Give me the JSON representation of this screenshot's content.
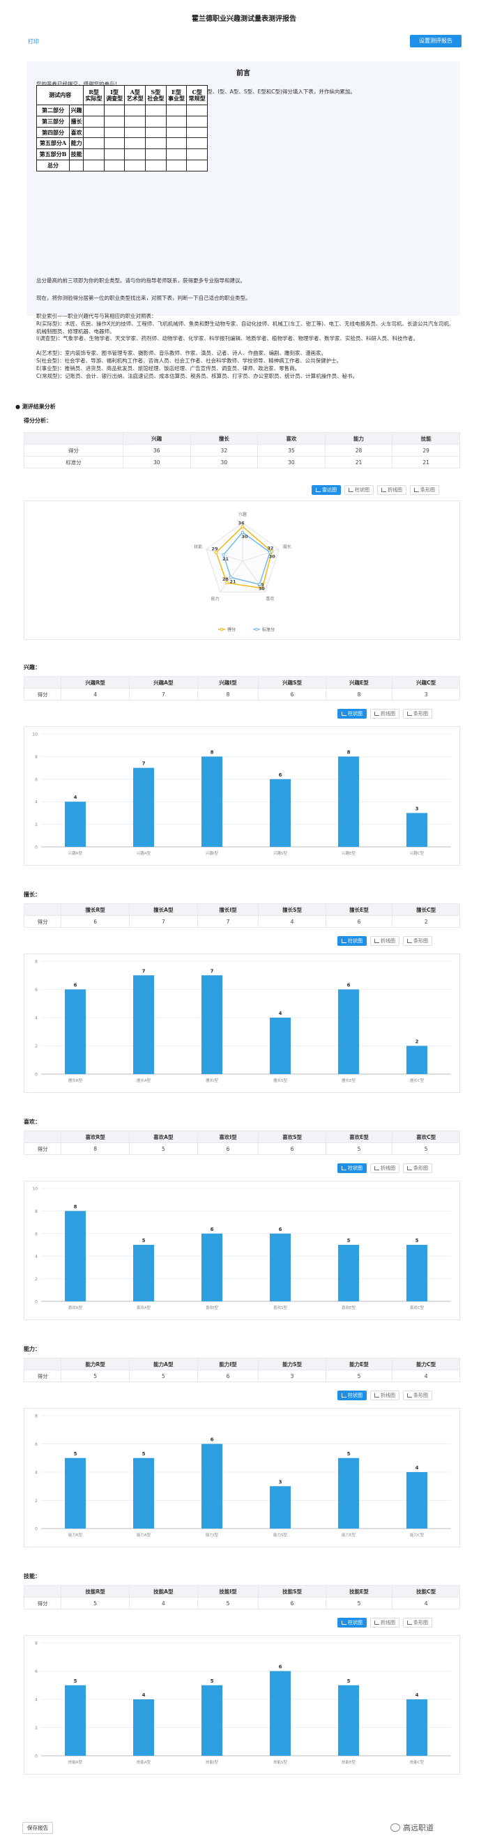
{
  "page": {
    "title": "霍兰德职业兴趣测试量表测评报告",
    "print_label": "打印",
    "setup_button": "设置测评报告",
    "save_button": "保存报告",
    "watermark": "高远职道"
  },
  "preface": {
    "title": "前言",
    "line1": "您的答卷已经提交，感谢您的参与！",
    "line2": "请将第二部分至第五部分的全部测验分数按前面已统计好的6种职业倾向(R型、I型、A型、S型、E型和C型)得分填入下表，并作纵向累加。",
    "table": {
      "headers": [
        "测试内容",
        "",
        "R型\n实际型",
        "I型\n调查型",
        "A型\n艺术型",
        "S型\n社会型",
        "E型\n事业型",
        "C型\n常规型"
      ],
      "rows": [
        [
          "第二部分",
          "兴趣"
        ],
        [
          "第三部分",
          "擅长"
        ],
        [
          "第四部分",
          "喜欢"
        ],
        [
          "第五部分A",
          "能力"
        ],
        [
          "第五部分B",
          "技能"
        ],
        [
          "总分",
          ""
        ]
      ]
    },
    "line3": "总分最高的前三项即为你的职业类型。请与你的指导老师联系，获得更多专业指导和建议。",
    "line4": "现在，将你测验得分居第一位的职业类型找出来，对照下表，判断一下自己适合的职业类型。",
    "line5": "职业索引——职业兴趣代号与其相应的职业对照表：",
    "line6": "R(实际型)：木匠、农民、操作X光的技师、工程师、飞机机械师、鱼类和野生动物专家、自动化技师、机械工(车工、钳工等)、电工、无线电报务员、火车司机、长途公共汽车司机、机械制图员、修理机器、电器师。",
    "line7": "I(调查型)：气象学者、生物学者、天文学家、药剂师、动物学者、化学家、科学报刊编辑、地质学者、植物学者、物理学者、数学家、实验员、科研人员、科技作者。",
    "line8": "A(艺术型)：室内装饰专家、图书管理专家、摄影师、音乐教师、作家、演员、记者、诗人、作曲家、编剧、雕刻家、漫画家。",
    "line9": "S(社会型)：社会学者、导游、福利机构工作者、咨询人员、社会工作者、社会科学教师、学校领导、精神病工作者、公共保健护士。",
    "line10": "E(事业型)：推销员、进货员、商品批发员、旅馆经理、饭店经理、广告宣传员、调查员、律师、政治家、零售商。",
    "line11": "C(常规型)：记账员、会计、银行出纳、法庭速记员、成本估算员、税务员、核算员、打字员、办公室职员、统计员、计算机操作员、秘书。"
  },
  "results": {
    "section_title": "测评结果分析",
    "score_analysis": "得分分析：",
    "summary_table": {
      "headers": [
        "",
        "兴趣",
        "擅长",
        "喜欢",
        "能力",
        "技能"
      ],
      "rows": [
        [
          "得分",
          "36",
          "32",
          "35",
          "28",
          "29"
        ],
        [
          "标准分",
          "30",
          "30",
          "30",
          "21",
          "21"
        ]
      ]
    },
    "radar_buttons": [
      "雷达图",
      "柱状图",
      "折线图",
      "条形图"
    ],
    "bar_buttons": [
      "柱状图",
      "折线图",
      "条形图"
    ],
    "cat_tables": [
      {
        "head": "兴趣：",
        "headers": [
          "",
          "兴趣R型",
          "兴趣A型",
          "兴趣I型",
          "兴趣S型",
          "兴趣E型",
          "兴趣C型"
        ],
        "row": [
          "得分",
          "4",
          "7",
          "8",
          "6",
          "8",
          "3"
        ]
      },
      {
        "head": "擅长：",
        "headers": [
          "",
          "擅长R型",
          "擅长A型",
          "擅长I型",
          "擅长S型",
          "擅长E型",
          "擅长C型"
        ],
        "row": [
          "得分",
          "6",
          "7",
          "7",
          "4",
          "6",
          "2"
        ]
      },
      {
        "head": "喜欢：",
        "headers": [
          "",
          "喜欢R型",
          "喜欢A型",
          "喜欢I型",
          "喜欢S型",
          "喜欢E型",
          "喜欢C型"
        ],
        "row": [
          "得分",
          "8",
          "5",
          "6",
          "6",
          "5",
          "5"
        ]
      },
      {
        "head": "能力：",
        "headers": [
          "",
          "能力R型",
          "能力A型",
          "能力I型",
          "能力S型",
          "能力E型",
          "能力C型"
        ],
        "row": [
          "得分",
          "5",
          "5",
          "6",
          "3",
          "5",
          "4"
        ]
      },
      {
        "head": "技能：",
        "headers": [
          "",
          "技能R型",
          "技能A型",
          "技能I型",
          "技能S型",
          "技能E型",
          "技能C型"
        ],
        "row": [
          "得分",
          "5",
          "4",
          "5",
          "6",
          "5",
          "4"
        ]
      }
    ]
  },
  "colors": {
    "accent": "#1e90e8",
    "bar": "#2e9fe0",
    "radar_score": "#f5b400",
    "radar_std": "#6fb7e8"
  },
  "chart_data": [
    {
      "type": "radar",
      "indicators": [
        "兴趣",
        "擅长",
        "喜欢",
        "能力",
        "技能"
      ],
      "max": 40,
      "series": [
        {
          "name": "得分",
          "values": [
            36,
            32,
            35,
            28,
            29
          ]
        },
        {
          "name": "标准分",
          "values": [
            30,
            30,
            30,
            21,
            21
          ]
        }
      ],
      "legend": "bottom"
    },
    {
      "type": "bar",
      "categories": [
        "兴趣R型",
        "兴趣A型",
        "兴趣I型",
        "兴趣S型",
        "兴趣E型",
        "兴趣C型"
      ],
      "values": [
        4,
        7,
        8,
        6,
        8,
        3
      ],
      "ylim": [
        0,
        10
      ],
      "yticks": [
        0,
        2,
        4,
        6,
        8,
        10
      ]
    },
    {
      "type": "bar",
      "categories": [
        "擅长R型",
        "擅长A型",
        "擅长I型",
        "擅长S型",
        "擅长E型",
        "擅长C型"
      ],
      "values": [
        6,
        7,
        7,
        4,
        6,
        2
      ],
      "ylim": [
        0,
        8
      ],
      "yticks": [
        0,
        2,
        4,
        6,
        8
      ]
    },
    {
      "type": "bar",
      "categories": [
        "喜欢R型",
        "喜欢A型",
        "喜欢I型",
        "喜欢S型",
        "喜欢E型",
        "喜欢C型"
      ],
      "values": [
        8,
        5,
        6,
        6,
        5,
        5
      ],
      "ylim": [
        0,
        10
      ],
      "yticks": [
        0,
        2,
        4,
        6,
        8,
        10
      ]
    },
    {
      "type": "bar",
      "categories": [
        "能力R型",
        "能力A型",
        "能力I型",
        "能力S型",
        "能力E型",
        "能力C型"
      ],
      "values": [
        5,
        5,
        6,
        3,
        5,
        4
      ],
      "ylim": [
        0,
        8
      ],
      "yticks": [
        0,
        2,
        4,
        6,
        8
      ]
    },
    {
      "type": "bar",
      "categories": [
        "技能R型",
        "技能A型",
        "技能I型",
        "技能S型",
        "技能E型",
        "技能C型"
      ],
      "values": [
        5,
        4,
        5,
        6,
        5,
        4
      ],
      "ylim": [
        0,
        8
      ],
      "yticks": [
        0,
        2,
        4,
        6,
        8
      ]
    }
  ]
}
